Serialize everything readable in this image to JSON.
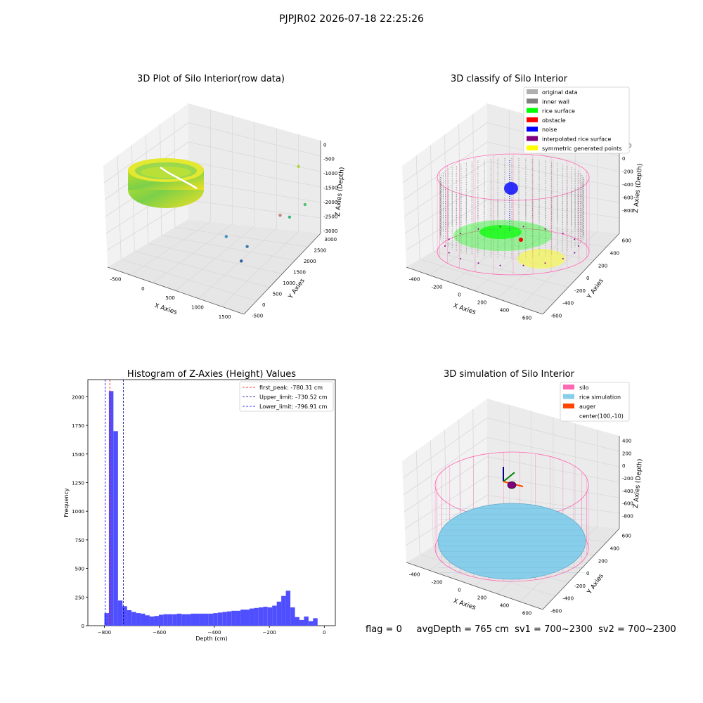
{
  "figure_title": "PJPJR02 2026-07-18 22:25:26",
  "status": "flag = 0     avgDepth = 765 cm  sv1 = 700~2300  sv2 = 700~2300",
  "colors": {
    "pane": "#f2f2f2",
    "grid": "#d9d9d9",
    "silo": "#ff69b4",
    "rice": "#87ceeb",
    "auger": "#ff4500",
    "inner_wall": "#808080",
    "rice_surface": "#00ff00",
    "obstacle": "#ff0000",
    "noise": "#0000ff",
    "interp": "#800080",
    "symmetric": "#ffff00",
    "original": "#b0b0b0",
    "hist_bar": "#4f4fff"
  },
  "chart_data": [
    {
      "type": "scatter",
      "title": "3D Plot of Silo Interior(row data)",
      "xlabel": "X Axies",
      "ylabel": "Y Axies",
      "zlabel": "Z Axies (Depth)",
      "xticks": [
        "-500",
        "0",
        "500",
        "1000",
        "1500"
      ],
      "yticks": [
        "-500",
        "0",
        "500",
        "1000",
        "1500",
        "2000",
        "2500",
        "3000"
      ],
      "zticks": [
        "0",
        "-500",
        "-1000",
        "-1500",
        "-2000",
        "-2500",
        "-3000"
      ],
      "outliers": [
        {
          "x": 1450,
          "y": 2800,
          "z": -1500
        },
        {
          "x": 1600,
          "y": 2700,
          "z": -2300
        },
        {
          "x": 1500,
          "y": 2200,
          "z": -2400
        },
        {
          "x": 1300,
          "y": 2300,
          "z": -2500
        },
        {
          "x": 800,
          "y": 1000,
          "z": -2600
        },
        {
          "x": 1100,
          "y": 1200,
          "z": -2800
        },
        {
          "x": 1100,
          "y": 900,
          "z": -3000
        }
      ]
    },
    {
      "type": "scatter",
      "title": "3D classify of Silo Interior",
      "xlabel": "X Axies",
      "ylabel": "Y Axies",
      "zlabel": "Z Axies (Depth)",
      "xticks": [
        "-400",
        "-200",
        "0",
        "200",
        "400",
        "600"
      ],
      "yticks": [
        "-600",
        "-400",
        "-200",
        "0",
        "200",
        "400",
        "600"
      ],
      "zticks": [
        "200",
        "0",
        "-200",
        "-400",
        "-600",
        "-800"
      ],
      "legend": [
        "original data",
        "inner wall",
        "rice surface",
        "obstacle",
        "noise",
        "interpolated rice surface",
        "symmetric generated points"
      ],
      "legend_position": "top-right"
    },
    {
      "type": "bar",
      "title": "Histogram of Z-Axies (Height) Values",
      "xlabel": "Depth (cm)",
      "ylabel": "Frequency",
      "xlim": [
        -860,
        40
      ],
      "ylim": [
        0,
        2150
      ],
      "xticks": [
        -800,
        -600,
        -400,
        -200,
        0
      ],
      "yticks": [
        0,
        250,
        500,
        750,
        1000,
        1250,
        1500,
        1750,
        2000
      ],
      "bin_start": -800,
      "bin_width": 16.5,
      "values": [
        110,
        2050,
        1700,
        220,
        170,
        135,
        120,
        110,
        105,
        90,
        80,
        85,
        95,
        100,
        100,
        100,
        105,
        100,
        100,
        105,
        105,
        105,
        105,
        105,
        110,
        115,
        120,
        125,
        130,
        130,
        140,
        140,
        150,
        155,
        160,
        165,
        160,
        175,
        210,
        260,
        305,
        160,
        75,
        50,
        80,
        40,
        65
      ],
      "lines": [
        {
          "label": "first_peak: -780.31 cm",
          "x": -780.31,
          "color": "#ff0000"
        },
        {
          "label": "Upper_limit: -730.52 cm",
          "x": -730.52,
          "color": "#00008b"
        },
        {
          "label": "Lower_limit: -796.91 cm",
          "x": -796.91,
          "color": "#0000ff"
        }
      ],
      "legend_position": "top-right"
    },
    {
      "type": "scatter",
      "title": "3D simulation of Silo Interior",
      "xlabel": "X Axies",
      "ylabel": "Y Axies",
      "zlabel": "Z Axies (Depth)",
      "xticks": [
        "-400",
        "-200",
        "0",
        "200",
        "400",
        "600"
      ],
      "yticks": [
        "-600",
        "-400",
        "-200",
        "0",
        "200",
        "400",
        "600"
      ],
      "zticks": [
        "400",
        "200",
        "0",
        "-200",
        "-400",
        "-600",
        "-800"
      ],
      "legend": [
        "silo",
        "rice simulation",
        "auger",
        "center(100,-10)"
      ],
      "legend_position": "top-right"
    }
  ]
}
